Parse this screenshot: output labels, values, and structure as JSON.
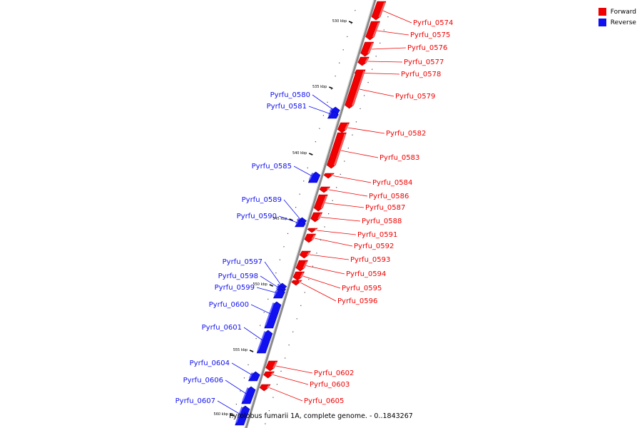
{
  "legend": {
    "forward": {
      "label": "Forward",
      "color": "#f00000"
    },
    "reverse": {
      "label": "Reverse",
      "color": "#1010f0"
    }
  },
  "caption": "Pyrolobus fumarii 1A, complete genome. - 0..1843267",
  "axis": {
    "ticks": [
      {
        "kbp": 530,
        "label": "530 kbp"
      },
      {
        "kbp": 535,
        "label": "535 kbp"
      },
      {
        "kbp": 540,
        "label": "540 kbp"
      },
      {
        "kbp": 545,
        "label": "545 kbp"
      },
      {
        "kbp": 550,
        "label": "550 kbp"
      },
      {
        "kbp": 555,
        "label": "555 kbp"
      },
      {
        "kbp": 560,
        "label": "560 kbp"
      }
    ]
  },
  "genes": [
    {
      "name": "Pyrfu_0574",
      "strand": "forward"
    },
    {
      "name": "Pyrfu_0575",
      "strand": "forward"
    },
    {
      "name": "Pyrfu_0576",
      "strand": "forward"
    },
    {
      "name": "Pyrfu_0577",
      "strand": "forward"
    },
    {
      "name": "Pyrfu_0578",
      "strand": "forward"
    },
    {
      "name": "Pyrfu_0579",
      "strand": "forward"
    },
    {
      "name": "Pyrfu_0580",
      "strand": "reverse"
    },
    {
      "name": "Pyrfu_0581",
      "strand": "reverse"
    },
    {
      "name": "Pyrfu_0582",
      "strand": "forward"
    },
    {
      "name": "Pyrfu_0583",
      "strand": "forward"
    },
    {
      "name": "Pyrfu_0584",
      "strand": "forward"
    },
    {
      "name": "Pyrfu_0585",
      "strand": "reverse"
    },
    {
      "name": "Pyrfu_0586",
      "strand": "forward"
    },
    {
      "name": "Pyrfu_0587",
      "strand": "forward"
    },
    {
      "name": "Pyrfu_0588",
      "strand": "forward"
    },
    {
      "name": "Pyrfu_0589",
      "strand": "reverse"
    },
    {
      "name": "Pyrfu_0590",
      "strand": "reverse"
    },
    {
      "name": "Pyrfu_0591",
      "strand": "forward"
    },
    {
      "name": "Pyrfu_0592",
      "strand": "forward"
    },
    {
      "name": "Pyrfu_0593",
      "strand": "forward"
    },
    {
      "name": "Pyrfu_0594",
      "strand": "forward"
    },
    {
      "name": "Pyrfu_0595",
      "strand": "forward"
    },
    {
      "name": "Pyrfu_0596",
      "strand": "forward"
    },
    {
      "name": "Pyrfu_0597",
      "strand": "reverse"
    },
    {
      "name": "Pyrfu_0598",
      "strand": "reverse"
    },
    {
      "name": "Pyrfu_0599",
      "strand": "reverse"
    },
    {
      "name": "Pyrfu_0600",
      "strand": "reverse"
    },
    {
      "name": "Pyrfu_0601",
      "strand": "reverse"
    },
    {
      "name": "Pyrfu_0602",
      "strand": "forward"
    },
    {
      "name": "Pyrfu_0603",
      "strand": "forward"
    },
    {
      "name": "Pyrfu_0604",
      "strand": "reverse"
    },
    {
      "name": "Pyrfu_0605",
      "strand": "forward"
    },
    {
      "name": "Pyrfu_0606",
      "strand": "reverse"
    },
    {
      "name": "Pyrfu_0607",
      "strand": "reverse"
    }
  ]
}
